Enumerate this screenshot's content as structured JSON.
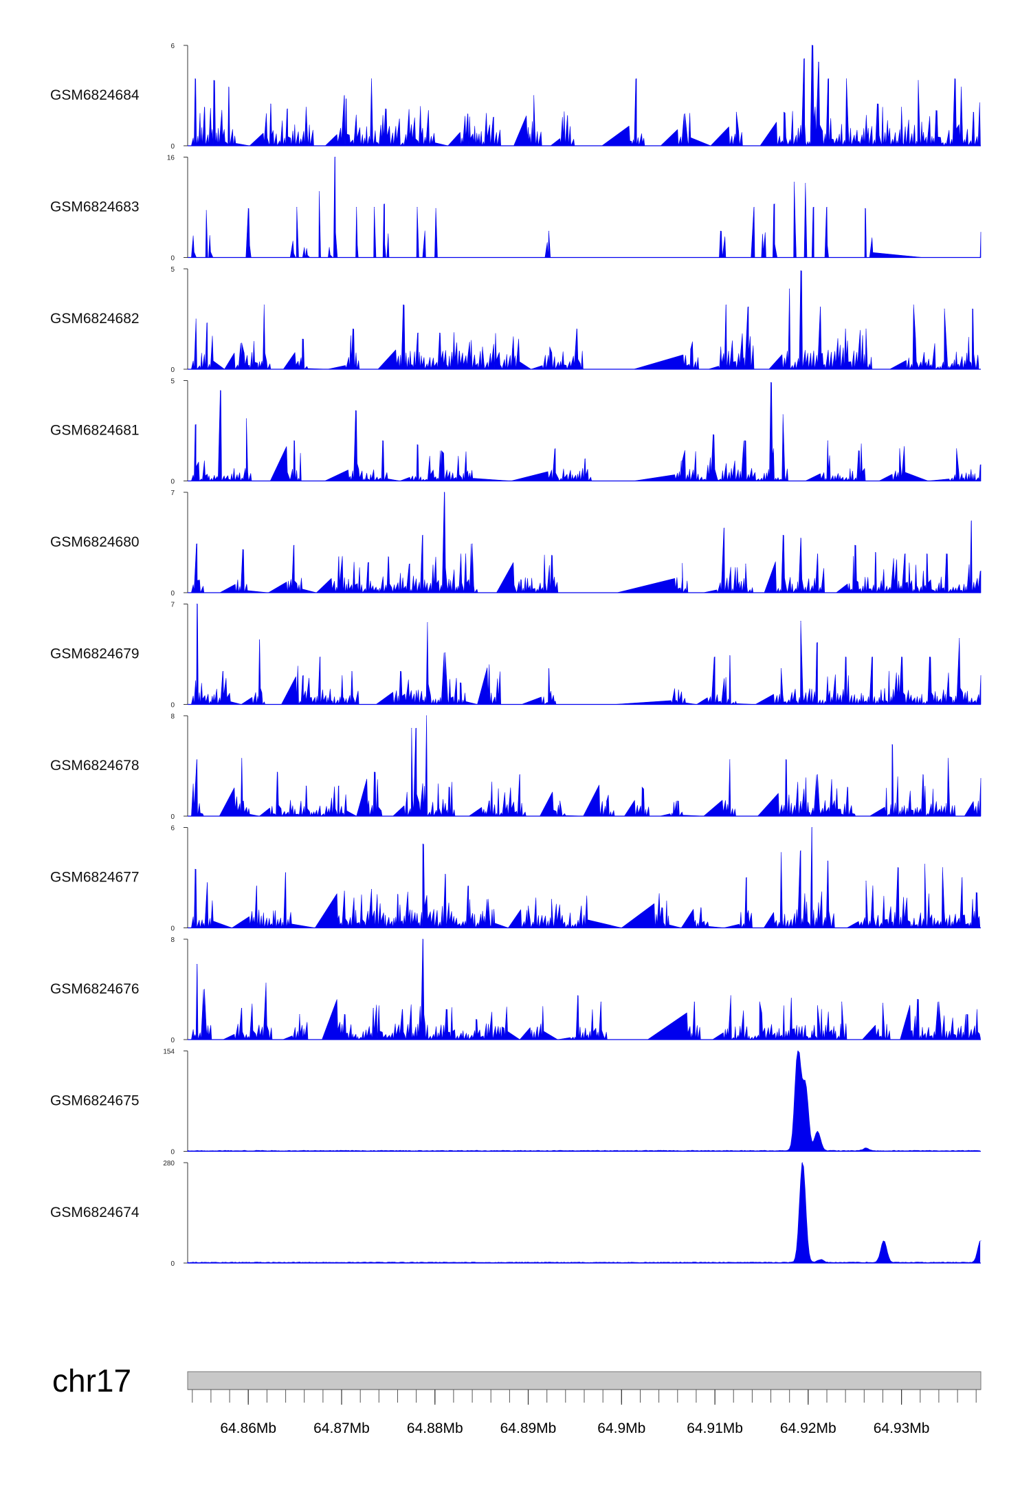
{
  "colors": {
    "signal": "#0000ee",
    "axis": "#333333",
    "ideogram_fill": "#c8c8c8",
    "ideogram_stroke": "#777777"
  },
  "chart_data": {
    "type": "area",
    "title": "",
    "chromosome": "chr17",
    "x_unit": "Mb",
    "xlim": [
      64.8535,
      64.9385
    ],
    "x_ticks": [
      64.86,
      64.87,
      64.88,
      64.89,
      64.9,
      64.91,
      64.92,
      64.93
    ],
    "x_tick_labels": [
      "64.86Mb",
      "64.87Mb",
      "64.88Mb",
      "64.89Mb",
      "64.9Mb",
      "64.91Mb",
      "64.92Mb",
      "64.93Mb"
    ],
    "minor_tick_step": 0.002,
    "tracks": [
      {
        "name": "GSM6824684",
        "ymin": 0,
        "ymax": 6,
        "peaks": [
          [
            64.8543,
            4.0
          ],
          [
            64.8553,
            2.3
          ],
          [
            64.8563,
            3.9
          ],
          [
            64.8579,
            3.5
          ],
          [
            64.8624,
            2.5
          ],
          [
            64.8642,
            2.2
          ],
          [
            64.8662,
            2.3
          ],
          [
            64.8703,
            3.0
          ],
          [
            64.8705,
            2.8
          ],
          [
            64.8732,
            4.0
          ],
          [
            64.8747,
            2.2
          ],
          [
            64.8762,
            1.6
          ],
          [
            64.8793,
            2.1
          ],
          [
            64.8835,
            1.9
          ],
          [
            64.8863,
            1.7
          ],
          [
            64.8906,
            3.0
          ],
          [
            64.8942,
            1.8
          ],
          [
            64.9016,
            4.0
          ],
          [
            64.9068,
            1.9
          ],
          [
            64.9123,
            2.0
          ],
          [
            64.9174,
            2.0
          ],
          [
            64.9196,
            5.2
          ],
          [
            64.9204,
            6.0
          ],
          [
            64.9211,
            5.0
          ],
          [
            64.9222,
            4.0
          ],
          [
            64.9241,
            4.0
          ],
          [
            64.9274,
            2.5
          ],
          [
            64.93,
            2.3
          ],
          [
            64.9318,
            3.9
          ],
          [
            64.9337,
            2.1
          ],
          [
            64.9357,
            4.0
          ],
          [
            64.9364,
            3.5
          ],
          [
            64.9377,
            2.0
          ]
        ],
        "floor": 0.8
      },
      {
        "name": "GSM6824683",
        "ymin": 0,
        "ymax": 16,
        "peaks": [
          [
            64.8555,
            7.5
          ],
          [
            64.86,
            7.8
          ],
          [
            64.8652,
            8.0
          ],
          [
            64.8676,
            10.5
          ],
          [
            64.8693,
            16.0
          ],
          [
            64.8716,
            8.0
          ],
          [
            64.8735,
            8.0
          ],
          [
            64.8746,
            8.5
          ],
          [
            64.8781,
            8.0
          ],
          [
            64.8801,
            7.8
          ],
          [
            64.8922,
            4.2
          ],
          [
            64.9106,
            4.2
          ],
          [
            64.9142,
            8.0
          ],
          [
            64.9164,
            8.5
          ],
          [
            64.9185,
            12.0
          ],
          [
            64.9197,
            11.8
          ],
          [
            64.9206,
            8.0
          ],
          [
            64.922,
            8.0
          ],
          [
            64.9261,
            7.8
          ],
          [
            64.9385,
            4.0
          ]
        ],
        "floor": 0.0
      },
      {
        "name": "GSM6824682",
        "ymin": 0,
        "ymax": 5,
        "peaks": [
          [
            64.8544,
            2.5
          ],
          [
            64.8556,
            2.3
          ],
          [
            64.8593,
            1.3
          ],
          [
            64.8617,
            3.2
          ],
          [
            64.8658,
            1.5
          ],
          [
            64.8712,
            2.0
          ],
          [
            64.8766,
            3.2
          ],
          [
            64.8782,
            1.8
          ],
          [
            64.8805,
            1.8
          ],
          [
            64.8826,
            0.9
          ],
          [
            64.8851,
            1.1
          ],
          [
            64.8883,
            1.0
          ],
          [
            64.8923,
            1.1
          ],
          [
            64.8952,
            2.0
          ],
          [
            64.9074,
            1.0
          ],
          [
            64.9112,
            3.2
          ],
          [
            64.9136,
            3.1
          ],
          [
            64.918,
            4.0
          ],
          [
            64.9192,
            4.9
          ],
          [
            64.9213,
            3.1
          ],
          [
            64.924,
            2.0
          ],
          [
            64.9262,
            2.0
          ],
          [
            64.9313,
            3.2
          ],
          [
            64.9346,
            3.0
          ],
          [
            64.9376,
            3.0
          ]
        ],
        "floor": 0.6
      },
      {
        "name": "GSM6824681",
        "ymin": 0,
        "ymax": 5,
        "peaks": [
          [
            64.8544,
            2.8
          ],
          [
            64.857,
            4.5
          ],
          [
            64.8598,
            3.1
          ],
          [
            64.8649,
            2.0
          ],
          [
            64.8715,
            3.5
          ],
          [
            64.8744,
            2.0
          ],
          [
            64.8781,
            1.8
          ],
          [
            64.8807,
            1.5
          ],
          [
            64.8834,
            0.5
          ],
          [
            64.8929,
            1.6
          ],
          [
            64.8961,
            1.1
          ],
          [
            64.9065,
            1.0
          ],
          [
            64.9098,
            2.3
          ],
          [
            64.9132,
            2.0
          ],
          [
            64.916,
            4.9
          ],
          [
            64.9173,
            3.3
          ],
          [
            64.9221,
            2.0
          ],
          [
            64.9254,
            1.5
          ],
          [
            64.9298,
            1.6
          ],
          [
            64.9359,
            1.6
          ],
          [
            64.9385,
            0.8
          ]
        ],
        "floor": 0.4
      },
      {
        "name": "GSM6824680",
        "ymin": 0,
        "ymax": 7,
        "peaks": [
          [
            64.8545,
            3.4
          ],
          [
            64.8594,
            3.0
          ],
          [
            64.8649,
            3.3
          ],
          [
            64.8697,
            2.5
          ],
          [
            64.8729,
            2.1
          ],
          [
            64.875,
            2.5
          ],
          [
            64.8773,
            2.0
          ],
          [
            64.8787,
            4.0
          ],
          [
            64.881,
            7.0
          ],
          [
            64.8833,
            2.7
          ],
          [
            64.884,
            3.4
          ],
          [
            64.8892,
            0.9
          ],
          [
            64.8925,
            2.6
          ],
          [
            64.9065,
            1.0
          ],
          [
            64.911,
            4.5
          ],
          [
            64.9133,
            2.0
          ],
          [
            64.9173,
            4.0
          ],
          [
            64.9192,
            3.8
          ],
          [
            64.921,
            2.7
          ],
          [
            64.925,
            3.3
          ],
          [
            64.9272,
            2.8
          ],
          [
            64.9304,
            2.7
          ],
          [
            64.9327,
            2.7
          ],
          [
            64.9348,
            2.7
          ],
          [
            64.9375,
            5.0
          ],
          [
            64.9385,
            1.5
          ]
        ],
        "floor": 0.7
      },
      {
        "name": "GSM6824679",
        "ymin": 0,
        "ymax": 7,
        "peaks": [
          [
            64.8545,
            7.0
          ],
          [
            64.8573,
            2.3
          ],
          [
            64.8612,
            4.5
          ],
          [
            64.8659,
            2.0
          ],
          [
            64.8677,
            3.3
          ],
          [
            64.8711,
            2.3
          ],
          [
            64.8763,
            2.3
          ],
          [
            64.8792,
            5.7
          ],
          [
            64.8811,
            3.6
          ],
          [
            64.8827,
            1.5
          ],
          [
            64.8864,
            0.5
          ],
          [
            64.8922,
            2.5
          ],
          [
            64.9061,
            1.0
          ],
          [
            64.91,
            3.3
          ],
          [
            64.9116,
            3.4
          ],
          [
            64.9171,
            2.5
          ],
          [
            64.9192,
            5.8
          ],
          [
            64.921,
            4.3
          ],
          [
            64.924,
            3.3
          ],
          [
            64.9269,
            3.3
          ],
          [
            64.93,
            3.3
          ],
          [
            64.933,
            3.3
          ],
          [
            64.9362,
            4.6
          ],
          [
            64.9385,
            2.0
          ]
        ],
        "floor": 0.7
      },
      {
        "name": "GSM6824678",
        "ymin": 0,
        "ymax": 8,
        "peaks": [
          [
            64.8545,
            4.5
          ],
          [
            64.8593,
            4.6
          ],
          [
            64.8631,
            3.5
          ],
          [
            64.8662,
            2.4
          ],
          [
            64.8697,
            2.4
          ],
          [
            64.8735,
            3.5
          ],
          [
            64.8775,
            7.0
          ],
          [
            64.878,
            7.0
          ],
          [
            64.8791,
            8.0
          ],
          [
            64.8815,
            2.3
          ],
          [
            64.8858,
            1.2
          ],
          [
            64.8891,
            3.3
          ],
          [
            64.8934,
            1.2
          ],
          [
            64.8984,
            1.2
          ],
          [
            64.9022,
            2.3
          ],
          [
            64.906,
            1.2
          ],
          [
            64.9116,
            4.5
          ],
          [
            64.9176,
            4.5
          ],
          [
            64.921,
            3.3
          ],
          [
            64.9242,
            2.3
          ],
          [
            64.929,
            5.7
          ],
          [
            64.9323,
            3.3
          ],
          [
            64.935,
            4.6
          ],
          [
            64.9385,
            3.0
          ]
        ],
        "floor": 0.8
      },
      {
        "name": "GSM6824677",
        "ymin": 0,
        "ymax": 6,
        "peaks": [
          [
            64.8543,
            3.5
          ],
          [
            64.8556,
            2.7
          ],
          [
            64.8609,
            2.5
          ],
          [
            64.864,
            3.3
          ],
          [
            64.8703,
            2.2
          ],
          [
            64.8732,
            2.3
          ],
          [
            64.876,
            2.0
          ],
          [
            64.8787,
            5.0
          ],
          [
            64.8811,
            3.2
          ],
          [
            64.8836,
            2.5
          ],
          [
            64.8857,
            1.7
          ],
          [
            64.89,
            1.3
          ],
          [
            64.8925,
            1.7
          ],
          [
            64.8957,
            1.3
          ],
          [
            64.9043,
            1.2
          ],
          [
            64.9085,
            1.2
          ],
          [
            64.9134,
            3.0
          ],
          [
            64.9171,
            4.5
          ],
          [
            64.9192,
            4.6
          ],
          [
            64.9204,
            6.0
          ],
          [
            64.9221,
            4.0
          ],
          [
            64.9262,
            2.8
          ],
          [
            64.9296,
            3.6
          ],
          [
            64.9325,
            3.8
          ],
          [
            64.9344,
            3.6
          ],
          [
            64.9365,
            3.0
          ],
          [
            64.938,
            2.1
          ]
        ],
        "floor": 0.7
      },
      {
        "name": "GSM6824676",
        "ymin": 0,
        "ymax": 8,
        "peaks": [
          [
            64.8545,
            6.0
          ],
          [
            64.8553,
            4.0
          ],
          [
            64.8593,
            2.5
          ],
          [
            64.8619,
            4.5
          ],
          [
            64.8655,
            2.0
          ],
          [
            64.8703,
            2.0
          ],
          [
            64.8734,
            2.5
          ],
          [
            64.8765,
            2.4
          ],
          [
            64.8787,
            8.0
          ],
          [
            64.8812,
            2.4
          ],
          [
            64.8844,
            1.6
          ],
          [
            64.8872,
            1.0
          ],
          [
            64.891,
            1.0
          ],
          [
            64.8953,
            3.5
          ],
          [
            64.8978,
            3.0
          ],
          [
            64.9078,
            3.0
          ],
          [
            64.9117,
            3.5
          ],
          [
            64.9148,
            3.0
          ],
          [
            64.9182,
            3.3
          ],
          [
            64.921,
            2.7
          ],
          [
            64.9236,
            3.0
          ],
          [
            64.928,
            2.9
          ],
          [
            64.9317,
            3.2
          ],
          [
            64.934,
            3.0
          ],
          [
            64.937,
            2.0
          ]
        ],
        "floor": 0.8
      },
      {
        "name": "GSM6824675",
        "ymin": 0,
        "ymax": 154,
        "peaks": [
          [
            64.9189,
            154
          ],
          [
            64.9197,
            100
          ],
          [
            64.921,
            30
          ],
          [
            64.9262,
            4
          ]
        ],
        "floor": 1.0
      },
      {
        "name": "GSM6824674",
        "ymin": 0,
        "ymax": 280,
        "peaks": [
          [
            64.9194,
            280
          ],
          [
            64.9213,
            8
          ],
          [
            64.9281,
            60
          ],
          [
            64.9385,
            62
          ]
        ],
        "floor": 2.0
      }
    ]
  }
}
